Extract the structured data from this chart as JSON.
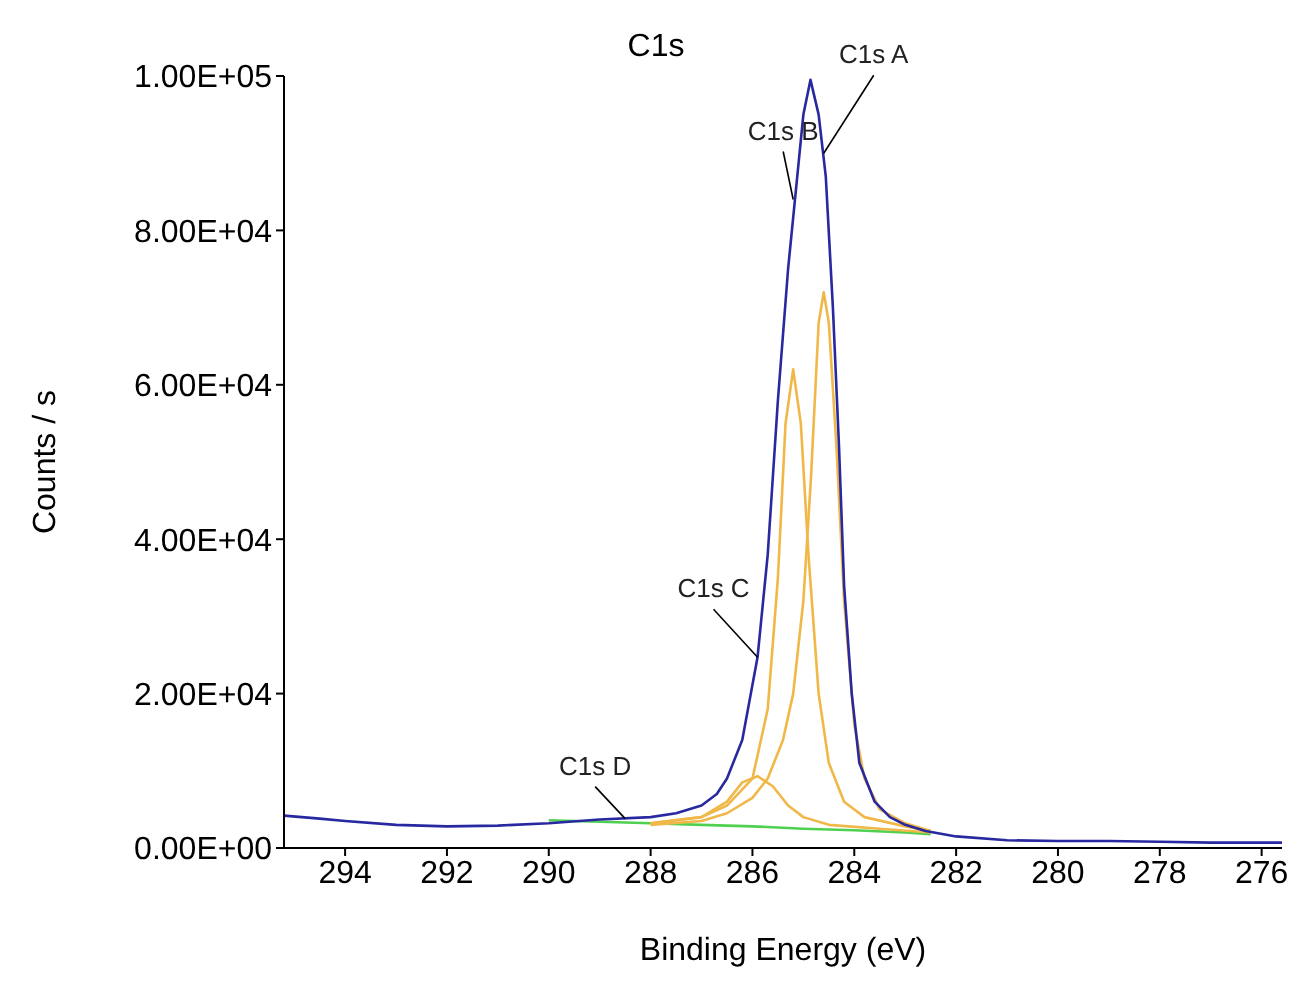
{
  "chart_data": {
    "type": "line",
    "title": "C1s",
    "xlabel": "Binding Energy (eV)",
    "ylabel": "Counts / s",
    "xlim": [
      295.2,
      275.6
    ],
    "xticks": [
      294,
      292,
      290,
      288,
      286,
      284,
      282,
      280,
      278,
      276
    ],
    "ylim": [
      0,
      100000
    ],
    "yticks": [
      {
        "value": 0,
        "label": "0.00E+00"
      },
      {
        "value": 20000,
        "label": "2.00E+04"
      },
      {
        "value": 40000,
        "label": "4.00E+04"
      },
      {
        "value": 60000,
        "label": "6.00E+04"
      },
      {
        "value": 80000,
        "label": "8.00E+04"
      },
      {
        "value": 100000,
        "label": "1.00E+05"
      }
    ],
    "marker": "none",
    "series": [
      {
        "color": "#50d050",
        "x": [
          290,
          289,
          288,
          287,
          286,
          285,
          284,
          283,
          282.5
        ],
        "values": [
          3600,
          3400,
          3200,
          3000,
          2800,
          2500,
          2300,
          2000,
          1800
        ]
      },
      {
        "color": "#f0b848",
        "x": [
          288,
          287,
          286.5,
          286,
          285.7,
          285.4,
          285.2,
          285.0,
          284.85,
          284.7,
          284.6,
          284.5,
          284.35,
          284.2,
          284.0,
          283.8,
          283.5,
          283.0,
          282.5
        ],
        "values": [
          3000,
          3500,
          4500,
          6500,
          9000,
          14000,
          20000,
          32000,
          48000,
          68000,
          72000,
          68000,
          52000,
          32000,
          16000,
          9000,
          5000,
          3200,
          2200
        ]
      },
      {
        "color": "#f0b848",
        "x": [
          288,
          287,
          286.5,
          286,
          285.7,
          285.5,
          285.35,
          285.2,
          285.05,
          284.9,
          284.7,
          284.5,
          284.2,
          283.8,
          283,
          282.5
        ],
        "values": [
          3200,
          4000,
          5500,
          9000,
          18000,
          35000,
          55000,
          62000,
          55000,
          38000,
          20000,
          11000,
          6000,
          4000,
          2800,
          2200
        ]
      },
      {
        "color": "#f0b848",
        "x": [
          288,
          287,
          286.5,
          286.2,
          285.9,
          285.6,
          285.3,
          285,
          284.5,
          283.5,
          282.5
        ],
        "values": [
          3200,
          4000,
          6000,
          8500,
          9300,
          8000,
          5500,
          4000,
          3000,
          2500,
          2000
        ]
      },
      {
        "color": "#2828a0",
        "x": [
          295.2,
          294.5,
          294,
          293,
          292,
          291,
          290,
          289,
          288,
          287.5,
          287,
          286.7,
          286.5,
          286.2,
          285.9,
          285.7,
          285.5,
          285.3,
          285.15,
          285.0,
          284.86,
          284.7,
          284.56,
          284.42,
          284.3,
          284.2,
          284.05,
          283.9,
          283.6,
          283.3,
          283,
          282.6,
          282,
          281,
          280,
          279,
          278,
          277,
          276,
          275.6
        ],
        "values": [
          4200,
          3800,
          3500,
          3000,
          2800,
          2900,
          3200,
          3700,
          4000,
          4500,
          5500,
          7000,
          9000,
          14000,
          24700,
          38000,
          58000,
          75000,
          85000,
          95000,
          99500,
          95000,
          87000,
          70000,
          52000,
          34000,
          20000,
          11000,
          6000,
          4000,
          3000,
          2200,
          1500,
          1000,
          900,
          900,
          800,
          700,
          700,
          700
        ]
      }
    ],
    "annotations": [
      {
        "text": "C1s A",
        "x": 284.6,
        "y": 90000
      },
      {
        "text": "C1s B",
        "x": 285.2,
        "y": 84000
      },
      {
        "text": "C1s C",
        "x": 285.9,
        "y": 24700
      },
      {
        "text": "C1s D",
        "x": 288.5,
        "y": 3800
      }
    ]
  }
}
